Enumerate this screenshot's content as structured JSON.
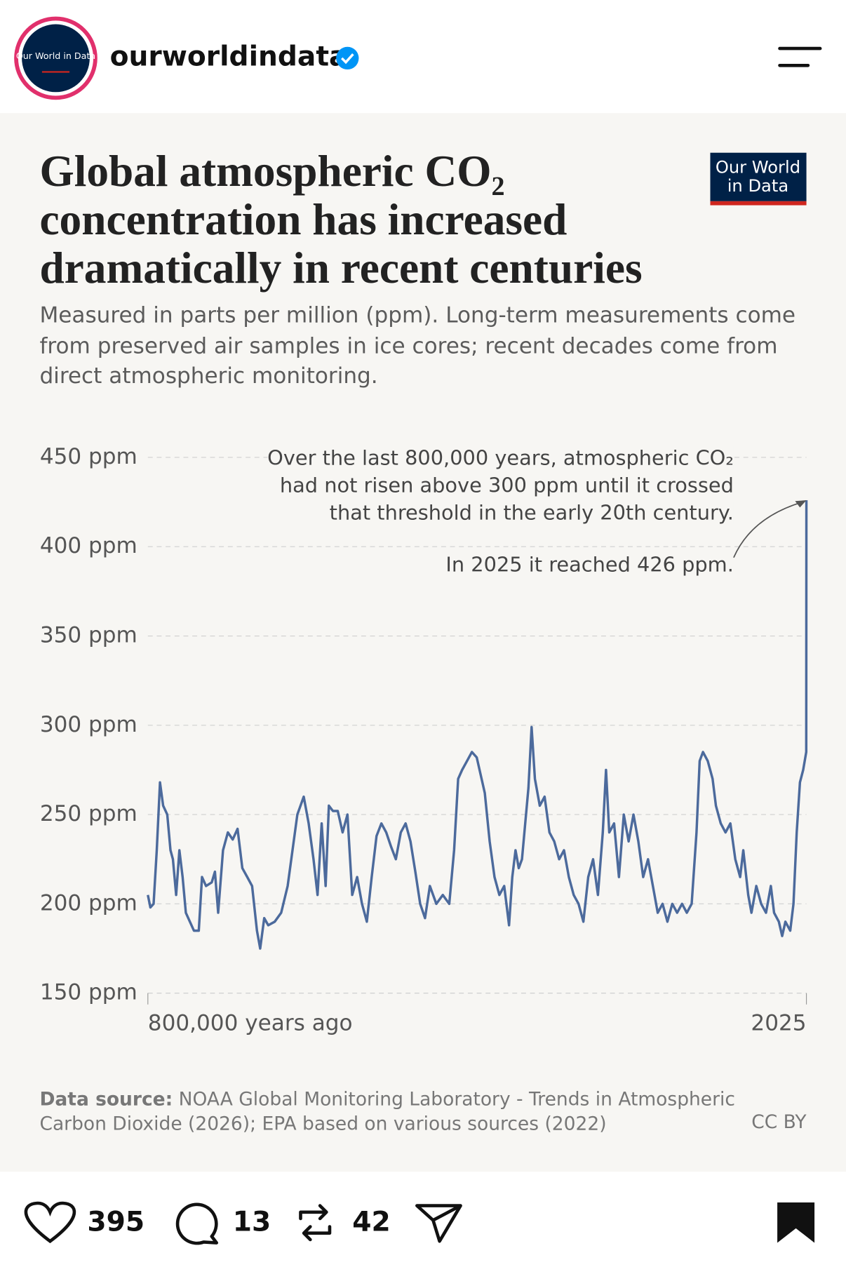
{
  "header": {
    "logo_text": "Our World in Data",
    "username": "ourworldindata"
  },
  "chart_data": {
    "type": "line",
    "title": "Global atmospheric CO₂ concentration has increased dramatically in recent centuries",
    "subtitle": "Measured in parts per million (ppm). Long-term measurements come from preserved air samples in ice cores; recent decades come from direct atmospheric monitoring.",
    "brand": "Our World in Data",
    "annotations": [
      "Over the last 800,000 years, atmospheric CO₂ had not risen above 300 ppm until it crossed that threshold in the early 20th century.",
      "In 2025 it reached 426 ppm."
    ],
    "color": "#4c6a9c",
    "x": [
      -798000,
      -795000,
      -791000,
      -787200,
      -783300,
      -779400,
      -774400,
      -770500,
      -767600,
      -763600,
      -759700,
      -755800,
      -751900,
      -747000,
      -742000,
      -736200,
      -732200,
      -727300,
      -720500,
      -716500,
      -712600,
      -706700,
      -700800,
      -694900,
      -689000,
      -683200,
      -677300,
      -671400,
      -665500,
      -661600,
      -656600,
      -651700,
      -643900,
      -636000,
      -628200,
      -622300,
      -616400,
      -608600,
      -602700,
      -596800,
      -591900,
      -586900,
      -582000,
      -578100,
      -573200,
      -567300,
      -561400,
      -555500,
      -549700,
      -543800,
      -537900,
      -532000,
      -526100,
      -520200,
      -514300,
      -508400,
      -502500,
      -496700,
      -490800,
      -484900,
      -479000,
      -473100,
      -467200,
      -461300,
      -455400,
      -447600,
      -439700,
      -431900,
      -426000,
      -421100,
      -416200,
      -410300,
      -404400,
      -398500,
      -392600,
      -388700,
      -382800,
      -376900,
      -371000,
      -365100,
      -359200,
      -355300,
      -351400,
      -347400,
      -343500,
      -339600,
      -335700,
      -331800,
      -327800,
      -321900,
      -316000,
      -310100,
      -304300,
      -298400,
      -292500,
      -286600,
      -280700,
      -274800,
      -268900,
      -263000,
      -257100,
      -251200,
      -245300,
      -241400,
      -237500,
      -231600,
      -225700,
      -219800,
      -213900,
      -208000,
      -202200,
      -196300,
      -190400,
      -184500,
      -178600,
      -172700,
      -166800,
      -160900,
      -155000,
      -149000,
      -143300,
      -137400,
      -131500,
      -127600,
      -123600,
      -117800,
      -111900,
      -107900,
      -102000,
      -96200,
      -90300,
      -84400,
      -78500,
      -74600,
      -68700,
      -64700,
      -58800,
      -52900,
      -47100,
      -41200,
      -37200,
      -31400,
      -27400,
      -23500,
      -17600,
      -13700,
      -9800,
      -5800,
      -1900,
      1850,
      2025
    ],
    "values": [
      205,
      198,
      200,
      230,
      268,
      255,
      250,
      230,
      225,
      205,
      230,
      215,
      195,
      190,
      185,
      185,
      215,
      210,
      212,
      218,
      195,
      230,
      240,
      236,
      242,
      220,
      215,
      210,
      185,
      175,
      192,
      188,
      190,
      195,
      210,
      230,
      250,
      260,
      245,
      225,
      205,
      245,
      210,
      255,
      252,
      252,
      240,
      250,
      205,
      215,
      200,
      190,
      215,
      238,
      245,
      240,
      232,
      225,
      240,
      245,
      235,
      218,
      200,
      192,
      210,
      200,
      205,
      200,
      230,
      270,
      275,
      280,
      285,
      282,
      270,
      262,
      235,
      215,
      205,
      210,
      188,
      215,
      230,
      220,
      225,
      245,
      265,
      299,
      270,
      255,
      260,
      240,
      235,
      225,
      230,
      215,
      205,
      200,
      190,
      215,
      225,
      205,
      240,
      275,
      240,
      245,
      215,
      250,
      235,
      250,
      235,
      215,
      225,
      210,
      195,
      200,
      190,
      200,
      195,
      200,
      195,
      200,
      240,
      280,
      285,
      280,
      270,
      255,
      245,
      240,
      245,
      225,
      215,
      230,
      205,
      195,
      210,
      200,
      195,
      210,
      195,
      190,
      182,
      190,
      185,
      200,
      240,
      268,
      275,
      285,
      426
    ],
    "xlim": [
      -798000,
      2025
    ],
    "ylim": [
      150,
      450
    ],
    "xticks": [
      {
        "value": -798000,
        "label": "800,000 years ago"
      },
      2025
    ],
    "yticks": [
      {
        "value": 150,
        "label": "150 ppm"
      },
      {
        "value": 200,
        "label": "200 ppm"
      },
      {
        "value": 250,
        "label": "250 ppm"
      },
      {
        "value": 300,
        "label": "300 ppm"
      },
      {
        "value": 350,
        "label": "350 ppm"
      },
      {
        "value": 400,
        "label": "400 ppm"
      },
      {
        "value": 450,
        "label": "450 ppm"
      }
    ],
    "grid": true,
    "source_label": "Data source:",
    "source_text": "NOAA Global Monitoring Laboratory - Trends in Atmospheric Carbon Dioxide (2026); EPA based on various sources (2022)",
    "license": "CC BY"
  },
  "footer": {
    "likes": 395,
    "comments": 13,
    "reposts": 42
  }
}
